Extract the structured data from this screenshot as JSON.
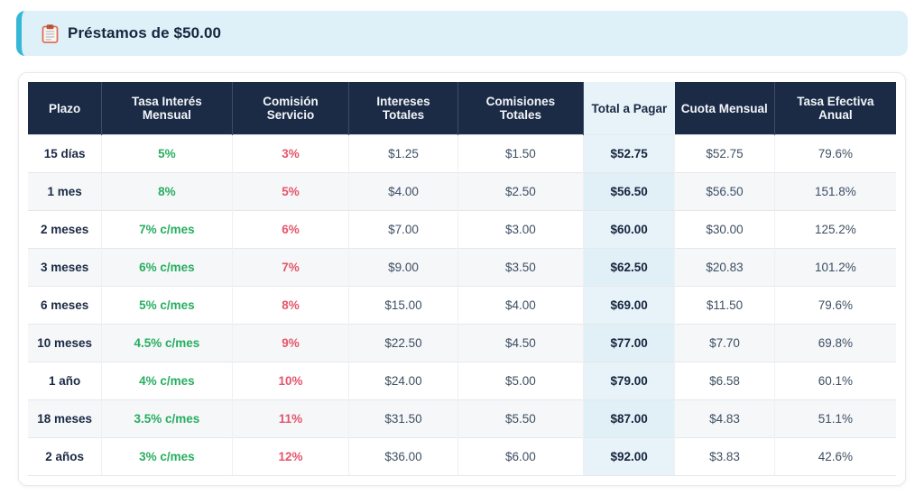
{
  "header": {
    "title": "Préstamos de $50.00",
    "icon": "clipboard-icon",
    "accent_color": "#36b7d8",
    "background_color": "#def1f8"
  },
  "table": {
    "columns": [
      "Plazo",
      "Tasa Interés Mensual",
      "Comisión Servicio",
      "Intereses Totales",
      "Comisiones Totales",
      "Total a Pagar",
      "Cuota Mensual",
      "Tasa Efectiva Anual"
    ],
    "highlighted_column": "Total a Pagar",
    "rows": [
      [
        "15 días",
        "5%",
        "3%",
        "$1.25",
        "$1.50",
        "$52.75",
        "$52.75",
        "79.6%"
      ],
      [
        "1 mes",
        "8%",
        "5%",
        "$4.00",
        "$2.50",
        "$56.50",
        "$56.50",
        "151.8%"
      ],
      [
        "2 meses",
        "7% c/mes",
        "6%",
        "$7.00",
        "$3.00",
        "$60.00",
        "$30.00",
        "125.2%"
      ],
      [
        "3 meses",
        "6% c/mes",
        "7%",
        "$9.00",
        "$3.50",
        "$62.50",
        "$20.83",
        "101.2%"
      ],
      [
        "6 meses",
        "5% c/mes",
        "8%",
        "$15.00",
        "$4.00",
        "$69.00",
        "$11.50",
        "79.6%"
      ],
      [
        "10 meses",
        "4.5% c/mes",
        "9%",
        "$22.50",
        "$4.50",
        "$77.00",
        "$7.70",
        "69.8%"
      ],
      [
        "1 año",
        "4% c/mes",
        "10%",
        "$24.00",
        "$5.00",
        "$79.00",
        "$6.58",
        "60.1%"
      ],
      [
        "18 meses",
        "3.5% c/mes",
        "11%",
        "$31.50",
        "$5.50",
        "$87.00",
        "$4.83",
        "51.1%"
      ],
      [
        "2 años",
        "3% c/mes",
        "12%",
        "$36.00",
        "$6.00",
        "$92.00",
        "$3.83",
        "42.6%"
      ]
    ],
    "colors": {
      "header_background": "#1b2a45",
      "header_text": "#f2f5f9",
      "positive_rate": "#27ae60",
      "negative_rate": "#e5566b",
      "highlight_cell": "#e7f3f8",
      "stripe_row": "#f5f7f9"
    }
  }
}
